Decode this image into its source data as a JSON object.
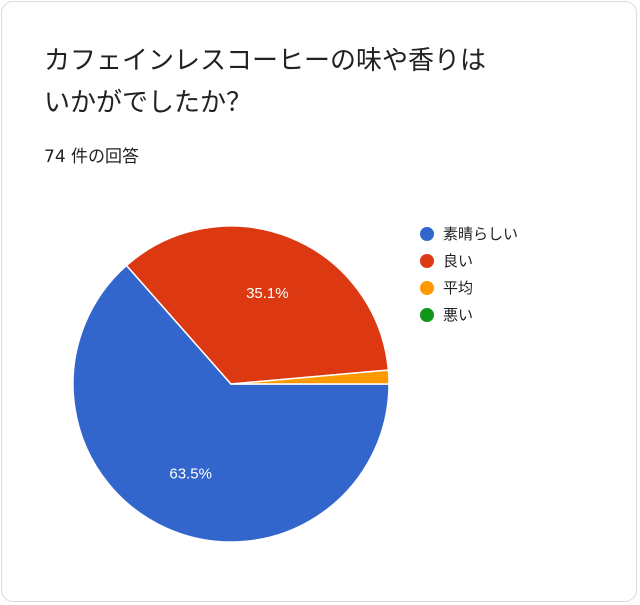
{
  "question": {
    "title_line1": "カフェインレスコーヒーの味や香りは",
    "title_line2": "いかがでしたか？"
  },
  "response_count": "74 件の回答",
  "chart_data": {
    "type": "pie",
    "title": "カフェインレスコーヒーの味や香りはいかがでしたか？",
    "categories": [
      "素晴らしい",
      "良い",
      "平均",
      "悪い"
    ],
    "values": [
      63.5,
      35.1,
      1.4,
      0
    ],
    "value_labels": [
      "63.5%",
      "35.1%",
      "",
      ""
    ],
    "colors": [
      "#3366cc",
      "#dc3912",
      "#ff9900",
      "#109618"
    ],
    "legend": "right"
  }
}
